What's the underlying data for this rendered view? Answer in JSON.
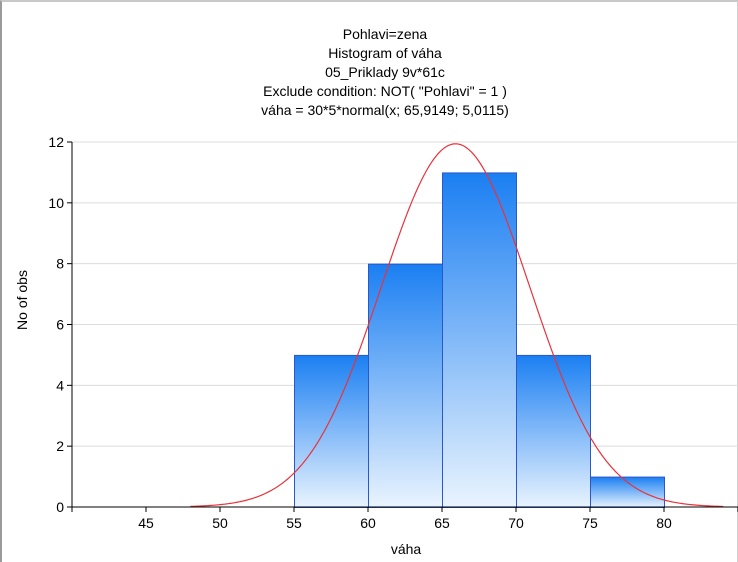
{
  "titles": {
    "line1": "Pohlavi=zena",
    "line2": "Histogram of váha",
    "line3": "05_Priklady 9v*61c",
    "line4": "Exclude condition: NOT( \"Pohlavi\" = 1 )",
    "line5": "váha = 30*5*normal(x; 65,9149; 5,0115)"
  },
  "chart_data": {
    "type": "bar",
    "title": "Histogram of váha",
    "xlabel": "váha",
    "ylabel": "No of obs",
    "xlim": [
      40,
      85
    ],
    "ylim": [
      0,
      12
    ],
    "x_ticks": [
      45,
      50,
      55,
      60,
      65,
      70,
      75,
      80
    ],
    "y_ticks": [
      0,
      2,
      4,
      6,
      8,
      10,
      12
    ],
    "bins": [
      {
        "from": 55,
        "to": 60,
        "count": 5
      },
      {
        "from": 60,
        "to": 65,
        "count": 8
      },
      {
        "from": 65,
        "to": 70,
        "count": 11
      },
      {
        "from": 70,
        "to": 75,
        "count": 5
      },
      {
        "from": 75,
        "to": 80,
        "count": 1
      }
    ],
    "fit_curve": {
      "type": "normal",
      "n": 30,
      "bin_width": 5,
      "mean": 65.9149,
      "sd": 5.0115,
      "x_range": [
        48,
        84
      ]
    },
    "grid": "horizontal",
    "colors": {
      "bar_top": "#1b7ff2",
      "bar_bottom": "#eaf4fe",
      "bar_edge": "#2a58c8",
      "curve": "#e8333c",
      "grid": "#dcdcdc"
    }
  }
}
